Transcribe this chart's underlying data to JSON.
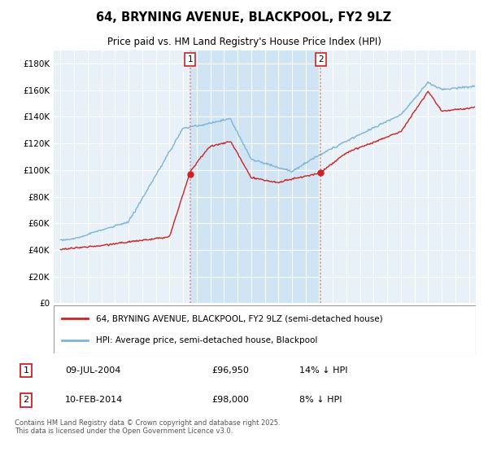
{
  "title": "64, BRYNING AVENUE, BLACKPOOL, FY2 9LZ",
  "subtitle": "Price paid vs. HM Land Registry's House Price Index (HPI)",
  "ylim": [
    0,
    190000
  ],
  "yticks": [
    0,
    20000,
    40000,
    60000,
    80000,
    100000,
    120000,
    140000,
    160000,
    180000
  ],
  "ytick_labels": [
    "£0",
    "£20K",
    "£40K",
    "£60K",
    "£80K",
    "£100K",
    "£120K",
    "£140K",
    "£160K",
    "£180K"
  ],
  "hpi_color": "#7ab4d8",
  "price_color": "#cc2222",
  "vline_color": "#e08080",
  "background_color": "#ffffff",
  "plot_bg_color": "#e8f0f8",
  "grid_color": "#ffffff",
  "shade_color": "#d0e4f4",
  "sale1_x": 2004.52,
  "sale1_price": 96950,
  "sale2_x": 2014.1,
  "sale2_price": 98000,
  "legend_label1": "64, BRYNING AVENUE, BLACKPOOL, FY2 9LZ (semi-detached house)",
  "legend_label2": "HPI: Average price, semi-detached house, Blackpool",
  "sale1_date_str": "09-JUL-2004",
  "sale1_price_str": "£96,950",
  "sale1_hpi_str": "14% ↓ HPI",
  "sale2_date_str": "10-FEB-2014",
  "sale2_price_str": "£98,000",
  "sale2_hpi_str": "8% ↓ HPI",
  "footer": "Contains HM Land Registry data © Crown copyright and database right 2025.\nThis data is licensed under the Open Government Licence v3.0.",
  "xlim_start": 1994.5,
  "xlim_end": 2025.5
}
